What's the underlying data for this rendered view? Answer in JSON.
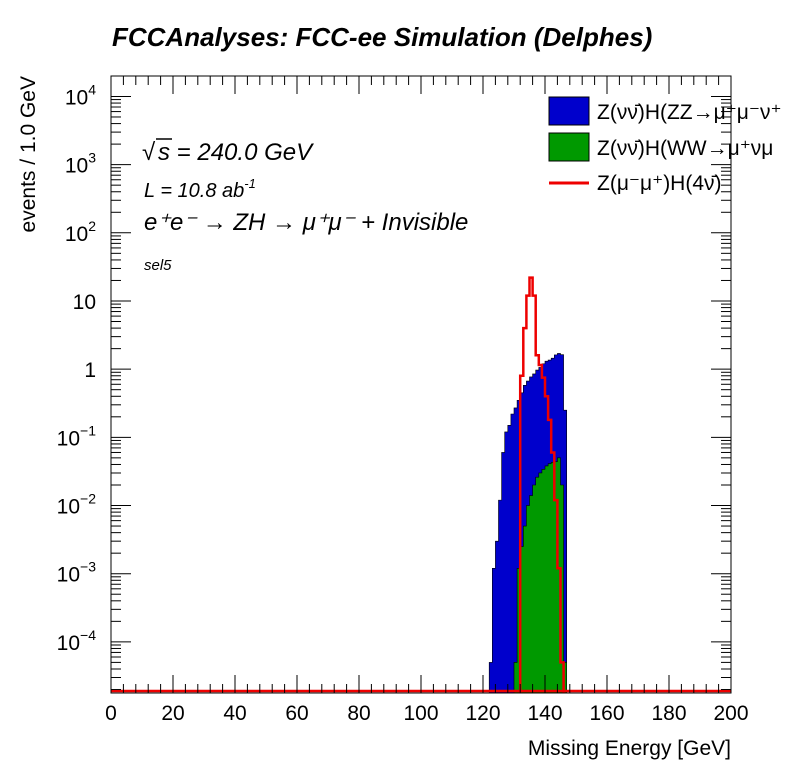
{
  "chart_data": {
    "type": "histogram",
    "title": "FCCAnalyses: FCC-ee Simulation (Delphes)",
    "xlabel": "Missing Energy [GeV]",
    "ylabel": "events / 1.0 GeV",
    "xlim": [
      0,
      200
    ],
    "ylim_log10": [
      -4.75,
      4.3
    ],
    "y_scale": "log",
    "bin_width": 1.0,
    "grid": false,
    "legend_position": "top-right",
    "x_ticks": [
      "0",
      "20",
      "40",
      "60",
      "80",
      "100",
      "120",
      "140",
      "160",
      "180",
      "200"
    ],
    "x_tick_values": [
      0,
      20,
      40,
      60,
      80,
      100,
      120,
      140,
      160,
      180,
      200
    ],
    "y_ticks": [
      {
        "base": "10",
        "exp": "4",
        "value": 4
      },
      {
        "base": "10",
        "exp": "3",
        "value": 3
      },
      {
        "base": "10",
        "exp": "2",
        "value": 2
      },
      {
        "base": "10",
        "exp": "",
        "value": 1
      },
      {
        "base": "1",
        "exp": "",
        "value": 0
      },
      {
        "base": "10",
        "exp": "−1",
        "value": -1
      },
      {
        "base": "10",
        "exp": "−2",
        "value": -2
      },
      {
        "base": "10",
        "exp": "−3",
        "value": -3
      },
      {
        "base": "10",
        "exp": "−4",
        "value": -4
      }
    ],
    "annotations": {
      "energy": "s = 240.0 GeV",
      "energy_sqrt_symbol": "√",
      "lumi": "L = 10.8 ab",
      "lumi_exp": "-1",
      "process": "e⁺e⁻ → ZH → μ⁺μ⁻ + Invisible",
      "selection": "sel5"
    },
    "series": [
      {
        "name": "Z(νν̄)H(ZZ→μ⁺μ⁻ν⁺",
        "style": "stacked-fill",
        "color": "#0000cc",
        "bins_start": 122,
        "values": [
          5e-05,
          0.0012,
          0.003,
          0.012,
          0.06,
          0.12,
          0.15,
          0.22,
          0.27,
          0.35,
          0.45,
          0.58,
          0.67,
          0.77,
          0.85,
          0.97,
          1.06,
          1.2,
          1.31,
          1.36,
          1.45,
          1.62,
          1.7,
          1.63,
          0.25
        ]
      },
      {
        "name": "Z(νν̄)H(WW→μ⁺νμ",
        "style": "fill",
        "color": "#009900",
        "bins_start": 130,
        "values": [
          5e-05,
          0.0012,
          0.0025,
          0.005,
          0.01,
          0.014,
          0.02,
          0.026,
          0.03,
          0.034,
          0.038,
          0.041,
          0.043,
          0.044,
          0.05,
          0.02,
          5e-05
        ]
      },
      {
        "name": "Z(μ⁻μ⁺)H(4ν̄)",
        "style": "line",
        "color": "#ee0000",
        "bins_start": 132,
        "values": [
          0.8,
          4.0,
          12.0,
          22.0,
          12.0,
          1.6,
          1.15,
          0.75,
          0.4,
          0.18,
          0.06,
          0.012,
          0.0012,
          5e-05
        ]
      }
    ]
  }
}
